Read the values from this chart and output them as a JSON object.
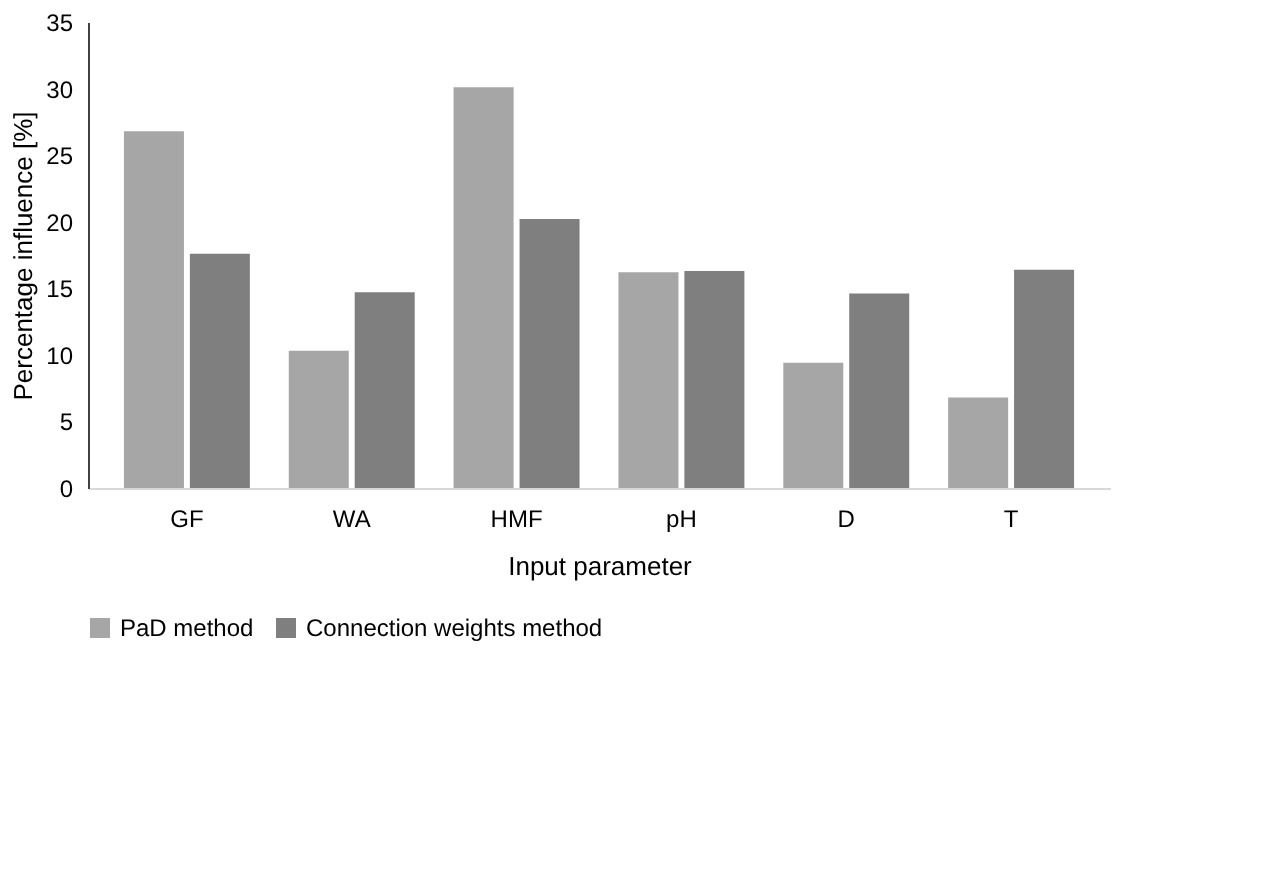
{
  "chart_data": {
    "type": "bar",
    "xlabel": "Input parameter",
    "ylabel": "Percentage influence [%]",
    "categories": [
      "GF",
      "WA",
      "HMF",
      "pH",
      "D",
      "T"
    ],
    "series": [
      {
        "name": "PaD method",
        "color": "#a6a6a6",
        "values": [
          26.8,
          10.3,
          30.1,
          16.2,
          9.4,
          6.8
        ]
      },
      {
        "name": "Connection weights method",
        "color": "#7f7f7f",
        "values": [
          17.6,
          14.7,
          20.2,
          16.3,
          14.6,
          16.4
        ]
      }
    ],
    "ylim": [
      0,
      35
    ],
    "yticks": [
      0,
      5,
      10,
      15,
      20,
      25,
      30,
      35
    ],
    "grid": false,
    "legend": "bottom"
  }
}
